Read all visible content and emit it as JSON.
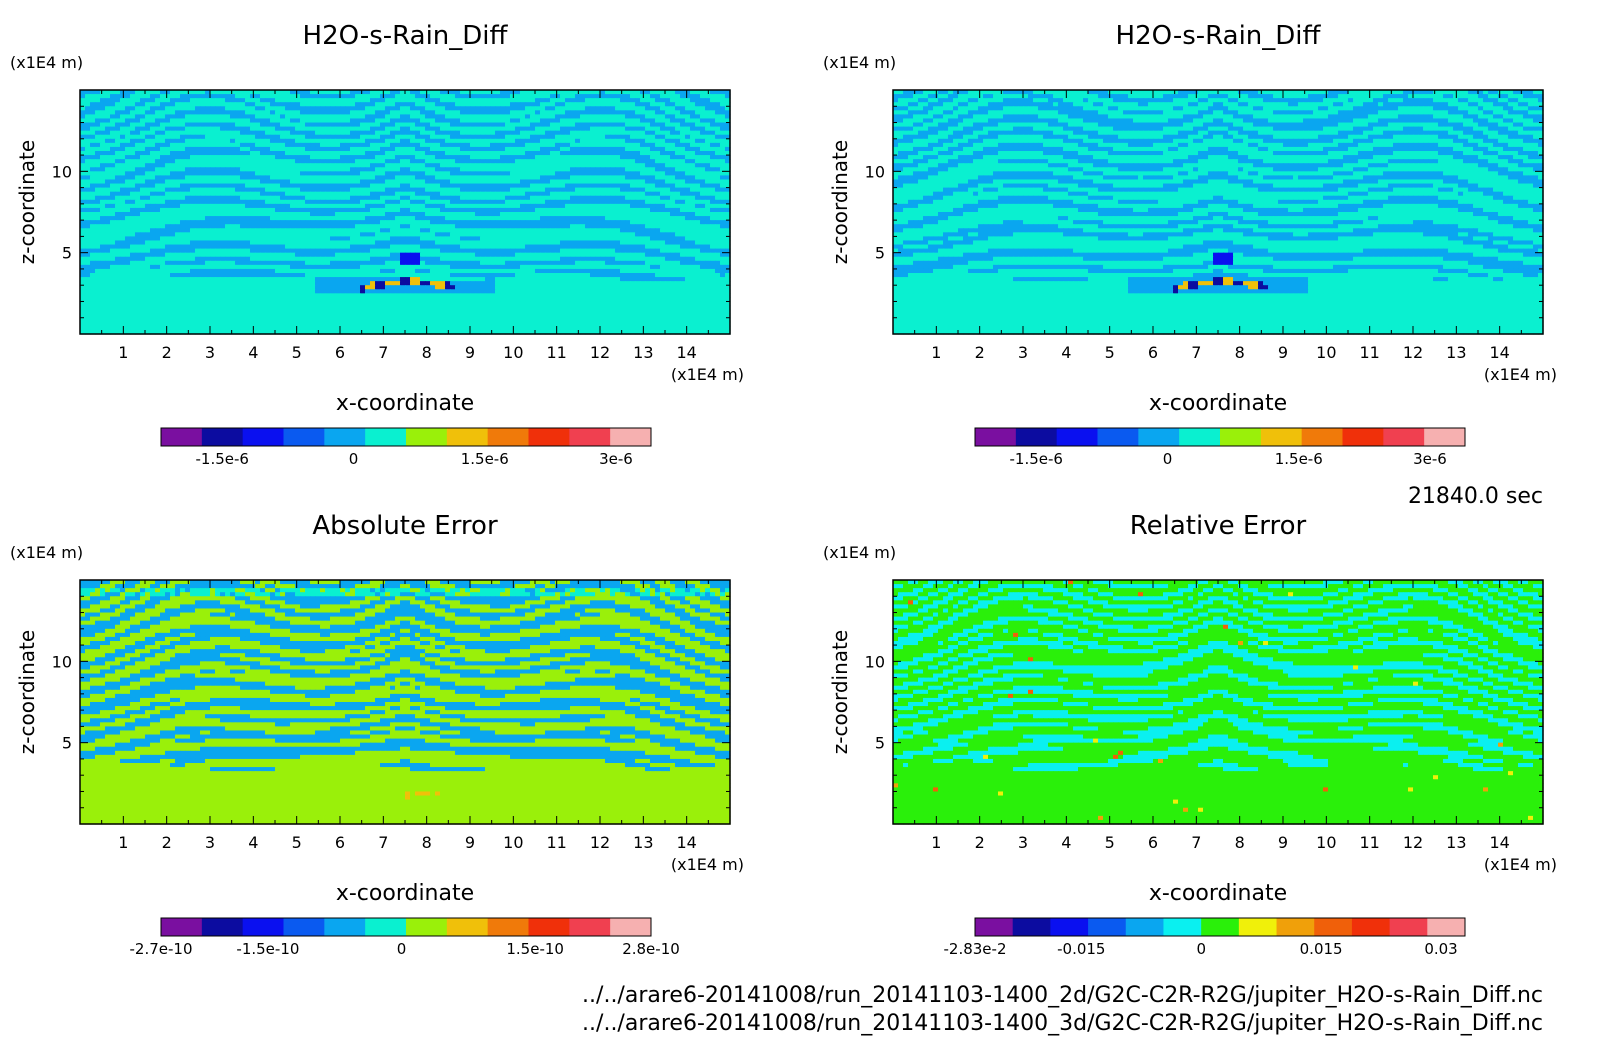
{
  "footer": {
    "time": "21840.0 sec",
    "file_2d": "../../arare6-20141008/run_20141103-1400_2d/G2C-C2R-R2G/jupiter_H2O-s-Rain_Diff.nc",
    "file_3d": "../../arare6-20141008/run_20141103-1400_3d/G2C-C2R-R2G/jupiter_H2O-s-Rain_Diff.nc"
  },
  "chart_data": [
    {
      "type": "heatmap",
      "title": "H2O-s-Rain_Diff",
      "xlabel": "x-coordinate",
      "ylabel": "z-coordinate",
      "x_unit": "(x1E4 m)",
      "y_unit": "(x1E4 m)",
      "xlim": [
        0,
        15
      ],
      "ylim": [
        0,
        15
      ],
      "x_ticks": [
        "1",
        "2",
        "3",
        "4",
        "5",
        "6",
        "7",
        "8",
        "9",
        "10",
        "11",
        "12",
        "13",
        "14"
      ],
      "y_ticks": [
        "5",
        "10"
      ],
      "pattern": "main",
      "colorbar": {
        "colors": [
          "#7a0fa0",
          "#0c0ca0",
          "#0a10f0",
          "#0a5af0",
          "#0aa6f0",
          "#0af0d0",
          "#9af00a",
          "#f0c00a",
          "#f07a0a",
          "#f0300a",
          "#f04050",
          "#f6b0b0"
        ],
        "ticks": [
          "-1.5e-6",
          "0",
          "1.5e-6",
          "3e-6"
        ],
        "tick_values": [
          -1.5e-06,
          0,
          1.5e-06,
          3e-06
        ],
        "range": [
          -2.2e-06,
          3.4e-06
        ]
      },
      "legend_pos": "bottom"
    },
    {
      "type": "heatmap",
      "title": "H2O-s-Rain_Diff",
      "xlabel": "x-coordinate",
      "ylabel": "z-coordinate",
      "x_unit": "(x1E4 m)",
      "y_unit": "(x1E4 m)",
      "xlim": [
        0,
        15
      ],
      "ylim": [
        0,
        15
      ],
      "x_ticks": [
        "1",
        "2",
        "3",
        "4",
        "5",
        "6",
        "7",
        "8",
        "9",
        "10",
        "11",
        "12",
        "13",
        "14"
      ],
      "y_ticks": [
        "5",
        "10"
      ],
      "pattern": "main",
      "colorbar": {
        "colors": [
          "#7a0fa0",
          "#0c0ca0",
          "#0a10f0",
          "#0a5af0",
          "#0aa6f0",
          "#0af0d0",
          "#9af00a",
          "#f0c00a",
          "#f07a0a",
          "#f0300a",
          "#f04050",
          "#f6b0b0"
        ],
        "ticks": [
          "-1.5e-6",
          "0",
          "1.5e-6",
          "3e-6"
        ],
        "tick_values": [
          -1.5e-06,
          0,
          1.5e-06,
          3e-06
        ],
        "range": [
          -2.2e-06,
          3.4e-06
        ]
      },
      "legend_pos": "bottom"
    },
    {
      "type": "heatmap",
      "title": "Absolute Error",
      "xlabel": "x-coordinate",
      "ylabel": "z-coordinate",
      "x_unit": "(x1E4 m)",
      "y_unit": "(x1E4 m)",
      "xlim": [
        0,
        15
      ],
      "ylim": [
        0,
        15
      ],
      "x_ticks": [
        "1",
        "2",
        "3",
        "4",
        "5",
        "6",
        "7",
        "8",
        "9",
        "10",
        "11",
        "12",
        "13",
        "14"
      ],
      "y_ticks": [
        "5",
        "10"
      ],
      "pattern": "abs",
      "colorbar": {
        "colors": [
          "#7a0fa0",
          "#0c0ca0",
          "#0a10f0",
          "#0a5af0",
          "#0aa6f0",
          "#0af0d0",
          "#9af00a",
          "#f0c00a",
          "#f07a0a",
          "#f0300a",
          "#f04050",
          "#f6b0b0"
        ],
        "ticks": [
          "-2.7e-10",
          "-1.5e-10",
          "0",
          "1.5e-10",
          "2.8e-10"
        ],
        "tick_values": [
          -2.7e-10,
          -1.5e-10,
          0,
          1.5e-10,
          2.8e-10
        ],
        "range": [
          -2.7e-10,
          2.8e-10
        ]
      },
      "legend_pos": "bottom"
    },
    {
      "type": "heatmap",
      "title": "Relative Error",
      "xlabel": "x-coordinate",
      "ylabel": "z-coordinate",
      "x_unit": "(x1E4 m)",
      "y_unit": "(x1E4 m)",
      "xlim": [
        0,
        15
      ],
      "ylim": [
        0,
        15
      ],
      "x_ticks": [
        "1",
        "2",
        "3",
        "4",
        "5",
        "6",
        "7",
        "8",
        "9",
        "10",
        "11",
        "12",
        "13",
        "14"
      ],
      "y_ticks": [
        "5",
        "10"
      ],
      "pattern": "rel",
      "colorbar": {
        "colors": [
          "#7a0fa0",
          "#0c0ca0",
          "#0a10f0",
          "#0a5af0",
          "#0aa6f0",
          "#0af0f0",
          "#2af00a",
          "#f0f00a",
          "#f0a00a",
          "#f0600a",
          "#f0300a",
          "#f04050",
          "#f6b0b0"
        ],
        "ticks": [
          "-2.83e-2",
          "-0.015",
          "0",
          "0.015",
          "0.03"
        ],
        "tick_values": [
          -0.0283,
          -0.015,
          0,
          0.015,
          0.03
        ],
        "range": [
          -0.0283,
          0.033
        ]
      },
      "legend_pos": "bottom"
    }
  ]
}
